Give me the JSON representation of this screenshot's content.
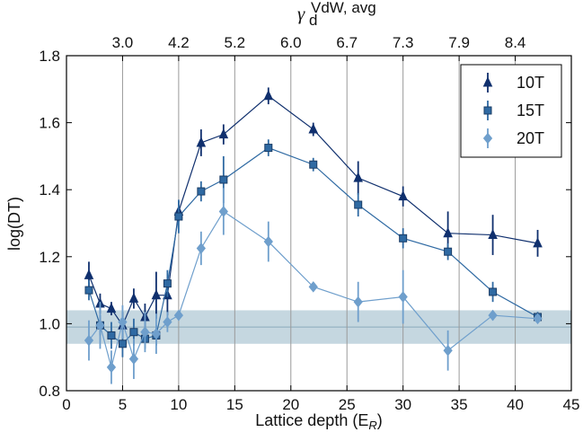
{
  "chart_data": {
    "type": "scatter",
    "xlabel": "Lattice depth (E",
    "xlabel_sub": "R",
    "xlabel_close": ")",
    "ylabel": "log(DT)",
    "top_axis_label": "γ",
    "top_axis_sub": "d",
    "top_axis_sup": "VdW, avg",
    "xlim": [
      0,
      45
    ],
    "ylim": [
      0.8,
      1.8
    ],
    "x_ticks": [
      "0",
      "5",
      "10",
      "15",
      "20",
      "25",
      "30",
      "35",
      "40",
      "45"
    ],
    "y_ticks": [
      "0.8",
      "1.0",
      "1.2",
      "1.4",
      "1.6",
      "1.8"
    ],
    "top_ticks": [
      {
        "x": 5,
        "label": "3.0"
      },
      {
        "x": 10,
        "label": "4.2"
      },
      {
        "x": 15,
        "label": "5.2"
      },
      {
        "x": 20,
        "label": "6.0"
      },
      {
        "x": 25,
        "label": "6.7"
      },
      {
        "x": 30,
        "label": "7.3"
      },
      {
        "x": 35,
        "label": "7.9"
      },
      {
        "x": 40,
        "label": "8.4"
      }
    ],
    "vertical_grid_x": [
      5,
      10,
      15,
      20,
      25,
      30,
      35,
      40
    ],
    "band": {
      "y_min": 0.94,
      "y_max": 1.04,
      "y_center": 0.99,
      "color": "#c5d7e0"
    },
    "legend_position": "top-right",
    "series": [
      {
        "name": "10T",
        "marker": "triangle",
        "color": "#10306e",
        "points": [
          {
            "x": 2,
            "y": 1.145,
            "err": 0.04
          },
          {
            "x": 3,
            "y": 1.06,
            "err": 0.03
          },
          {
            "x": 4,
            "y": 1.045,
            "err": 0.02
          },
          {
            "x": 5,
            "y": 0.995,
            "err": 0.04
          },
          {
            "x": 6,
            "y": 1.075,
            "err": 0.03
          },
          {
            "x": 7,
            "y": 1.02,
            "err": 0.04
          },
          {
            "x": 8,
            "y": 1.085,
            "err": 0.07
          },
          {
            "x": 9,
            "y": 1.085,
            "err": 0.06
          },
          {
            "x": 10,
            "y": 1.335,
            "err": 0.03
          },
          {
            "x": 12,
            "y": 1.54,
            "err": 0.04
          },
          {
            "x": 14,
            "y": 1.565,
            "err": 0.03
          },
          {
            "x": 18,
            "y": 1.68,
            "err": 0.025
          },
          {
            "x": 22,
            "y": 1.58,
            "err": 0.02
          },
          {
            "x": 26,
            "y": 1.435,
            "err": 0.05
          },
          {
            "x": 30,
            "y": 1.38,
            "err": 0.03
          },
          {
            "x": 34,
            "y": 1.27,
            "err": 0.065
          },
          {
            "x": 38,
            "y": 1.265,
            "err": 0.06
          },
          {
            "x": 42,
            "y": 1.24,
            "err": 0.04
          }
        ]
      },
      {
        "name": "15T",
        "marker": "square",
        "color": "#2f6aa3",
        "points": [
          {
            "x": 2,
            "y": 1.1,
            "err": 0.03
          },
          {
            "x": 3,
            "y": 0.995,
            "err": 0.03
          },
          {
            "x": 4,
            "y": 0.965,
            "err": 0.04
          },
          {
            "x": 5,
            "y": 0.94,
            "err": 0.04
          },
          {
            "x": 6,
            "y": 0.975,
            "err": 0.04
          },
          {
            "x": 7,
            "y": 0.955,
            "err": 0.03
          },
          {
            "x": 8,
            "y": 0.965,
            "err": 0.03
          },
          {
            "x": 9,
            "y": 1.12,
            "err": 0.04
          },
          {
            "x": 10,
            "y": 1.32,
            "err": 0.05
          },
          {
            "x": 12,
            "y": 1.395,
            "err": 0.03
          },
          {
            "x": 14,
            "y": 1.43,
            "err": 0.07
          },
          {
            "x": 18,
            "y": 1.525,
            "err": 0.025
          },
          {
            "x": 22,
            "y": 1.475,
            "err": 0.02
          },
          {
            "x": 26,
            "y": 1.355,
            "err": 0.035
          },
          {
            "x": 30,
            "y": 1.255,
            "err": 0.03
          },
          {
            "x": 34,
            "y": 1.215,
            "err": 0.025
          },
          {
            "x": 38,
            "y": 1.095,
            "err": 0.03
          },
          {
            "x": 42,
            "y": 1.02,
            "err": 0.015
          }
        ]
      },
      {
        "name": "20T",
        "marker": "diamond",
        "color": "#6f9fcc",
        "points": [
          {
            "x": 2,
            "y": 0.95,
            "err": 0.06
          },
          {
            "x": 3,
            "y": 0.995,
            "err": 0.07
          },
          {
            "x": 4,
            "y": 0.87,
            "err": 0.05
          },
          {
            "x": 5,
            "y": 1.005,
            "err": 0.05
          },
          {
            "x": 6,
            "y": 0.895,
            "err": 0.06
          },
          {
            "x": 7,
            "y": 0.975,
            "err": 0.06
          },
          {
            "x": 8,
            "y": 0.97,
            "err": 0.06
          },
          {
            "x": 9,
            "y": 1.005,
            "err": 0.03
          },
          {
            "x": 10,
            "y": 1.025,
            "err": 0.015
          },
          {
            "x": 12,
            "y": 1.225,
            "err": 0.05
          },
          {
            "x": 14,
            "y": 1.335,
            "err": 0.07
          },
          {
            "x": 18,
            "y": 1.245,
            "err": 0.06
          },
          {
            "x": 22,
            "y": 1.11,
            "err": 0.01
          },
          {
            "x": 26,
            "y": 1.065,
            "err": 0.06
          },
          {
            "x": 30,
            "y": 1.08,
            "err": 0.08
          },
          {
            "x": 34,
            "y": 0.92,
            "err": 0.06
          },
          {
            "x": 38,
            "y": 1.025,
            "err": 0.015
          },
          {
            "x": 42,
            "y": 1.015,
            "err": 0.01
          }
        ]
      }
    ]
  }
}
